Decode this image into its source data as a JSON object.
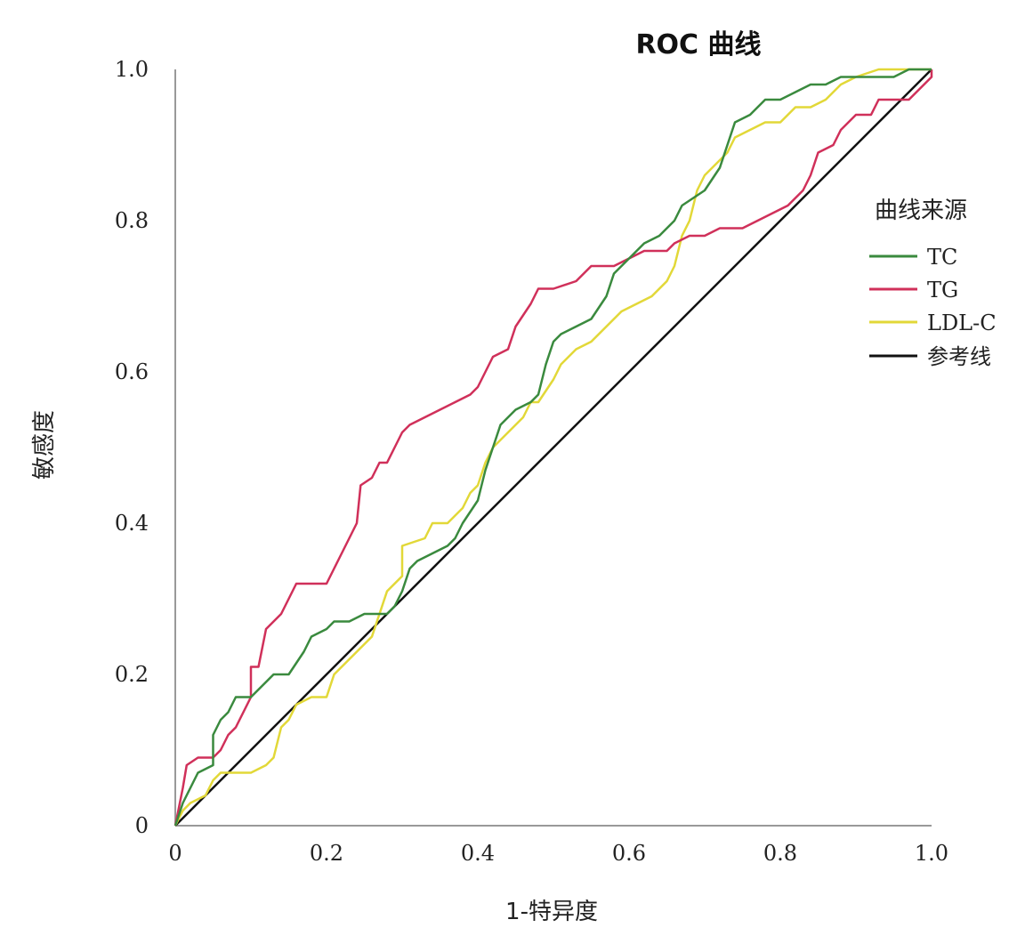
{
  "chart_data": {
    "type": "line",
    "title": "ROC 曲线",
    "xlabel": "1-特异度",
    "ylabel": "敏感度",
    "xlim": [
      0,
      1
    ],
    "ylim": [
      0,
      1
    ],
    "x_ticks": [
      "0",
      "0.2",
      "0.4",
      "0.6",
      "0.8",
      "1.0"
    ],
    "y_ticks": [
      "0",
      "0.2",
      "0.4",
      "0.6",
      "0.8",
      "1.0"
    ],
    "grid": false,
    "legend": {
      "title": "曲线来源",
      "placement": "right"
    },
    "series": [
      {
        "name": "TC",
        "color": "#3a8a3e",
        "points": [
          [
            0,
            0
          ],
          [
            0.01,
            0.03
          ],
          [
            0.02,
            0.05
          ],
          [
            0.03,
            0.07
          ],
          [
            0.05,
            0.08
          ],
          [
            0.05,
            0.12
          ],
          [
            0.06,
            0.14
          ],
          [
            0.07,
            0.15
          ],
          [
            0.08,
            0.17
          ],
          [
            0.1,
            0.17
          ],
          [
            0.12,
            0.19
          ],
          [
            0.13,
            0.2
          ],
          [
            0.15,
            0.2
          ],
          [
            0.17,
            0.23
          ],
          [
            0.18,
            0.25
          ],
          [
            0.2,
            0.26
          ],
          [
            0.21,
            0.27
          ],
          [
            0.23,
            0.27
          ],
          [
            0.25,
            0.28
          ],
          [
            0.28,
            0.28
          ],
          [
            0.29,
            0.29
          ],
          [
            0.3,
            0.31
          ],
          [
            0.31,
            0.34
          ],
          [
            0.32,
            0.35
          ],
          [
            0.34,
            0.36
          ],
          [
            0.36,
            0.37
          ],
          [
            0.37,
            0.38
          ],
          [
            0.38,
            0.4
          ],
          [
            0.4,
            0.43
          ],
          [
            0.41,
            0.47
          ],
          [
            0.42,
            0.5
          ],
          [
            0.43,
            0.53
          ],
          [
            0.45,
            0.55
          ],
          [
            0.47,
            0.56
          ],
          [
            0.48,
            0.57
          ],
          [
            0.49,
            0.61
          ],
          [
            0.5,
            0.64
          ],
          [
            0.51,
            0.65
          ],
          [
            0.53,
            0.66
          ],
          [
            0.55,
            0.67
          ],
          [
            0.57,
            0.7
          ],
          [
            0.58,
            0.73
          ],
          [
            0.6,
            0.75
          ],
          [
            0.62,
            0.77
          ],
          [
            0.64,
            0.78
          ],
          [
            0.66,
            0.8
          ],
          [
            0.67,
            0.82
          ],
          [
            0.7,
            0.84
          ],
          [
            0.72,
            0.87
          ],
          [
            0.73,
            0.9
          ],
          [
            0.74,
            0.93
          ],
          [
            0.76,
            0.94
          ],
          [
            0.78,
            0.96
          ],
          [
            0.8,
            0.96
          ],
          [
            0.82,
            0.97
          ],
          [
            0.84,
            0.98
          ],
          [
            0.86,
            0.98
          ],
          [
            0.88,
            0.99
          ],
          [
            0.9,
            0.99
          ],
          [
            0.93,
            0.99
          ],
          [
            0.95,
            0.99
          ],
          [
            0.97,
            1.0
          ],
          [
            1.0,
            1.0
          ]
        ]
      },
      {
        "name": "TG",
        "color": "#d0305a",
        "points": [
          [
            0,
            0
          ],
          [
            0.01,
            0.05
          ],
          [
            0.015,
            0.08
          ],
          [
            0.03,
            0.09
          ],
          [
            0.05,
            0.09
          ],
          [
            0.06,
            0.1
          ],
          [
            0.07,
            0.12
          ],
          [
            0.08,
            0.13
          ],
          [
            0.09,
            0.15
          ],
          [
            0.1,
            0.17
          ],
          [
            0.1,
            0.21
          ],
          [
            0.11,
            0.21
          ],
          [
            0.12,
            0.26
          ],
          [
            0.14,
            0.28
          ],
          [
            0.15,
            0.3
          ],
          [
            0.16,
            0.32
          ],
          [
            0.18,
            0.32
          ],
          [
            0.2,
            0.32
          ],
          [
            0.21,
            0.34
          ],
          [
            0.22,
            0.36
          ],
          [
            0.23,
            0.38
          ],
          [
            0.24,
            0.4
          ],
          [
            0.245,
            0.45
          ],
          [
            0.26,
            0.46
          ],
          [
            0.27,
            0.48
          ],
          [
            0.28,
            0.48
          ],
          [
            0.29,
            0.5
          ],
          [
            0.3,
            0.52
          ],
          [
            0.31,
            0.53
          ],
          [
            0.33,
            0.54
          ],
          [
            0.35,
            0.55
          ],
          [
            0.37,
            0.56
          ],
          [
            0.39,
            0.57
          ],
          [
            0.4,
            0.58
          ],
          [
            0.41,
            0.6
          ],
          [
            0.42,
            0.62
          ],
          [
            0.44,
            0.63
          ],
          [
            0.45,
            0.66
          ],
          [
            0.47,
            0.69
          ],
          [
            0.48,
            0.71
          ],
          [
            0.5,
            0.71
          ],
          [
            0.53,
            0.72
          ],
          [
            0.55,
            0.74
          ],
          [
            0.58,
            0.74
          ],
          [
            0.6,
            0.75
          ],
          [
            0.62,
            0.76
          ],
          [
            0.65,
            0.76
          ],
          [
            0.66,
            0.77
          ],
          [
            0.68,
            0.78
          ],
          [
            0.7,
            0.78
          ],
          [
            0.72,
            0.79
          ],
          [
            0.75,
            0.79
          ],
          [
            0.77,
            0.8
          ],
          [
            0.79,
            0.81
          ],
          [
            0.81,
            0.82
          ],
          [
            0.83,
            0.84
          ],
          [
            0.84,
            0.86
          ],
          [
            0.85,
            0.89
          ],
          [
            0.87,
            0.9
          ],
          [
            0.88,
            0.92
          ],
          [
            0.9,
            0.94
          ],
          [
            0.92,
            0.94
          ],
          [
            0.93,
            0.96
          ],
          [
            0.95,
            0.96
          ],
          [
            0.97,
            0.96
          ],
          [
            0.98,
            0.97
          ],
          [
            0.99,
            0.98
          ],
          [
            1.0,
            0.99
          ],
          [
            1.0,
            1.0
          ]
        ]
      },
      {
        "name": "LDL-C",
        "color": "#e2d838",
        "points": [
          [
            0,
            0
          ],
          [
            0.01,
            0.02
          ],
          [
            0.02,
            0.03
          ],
          [
            0.04,
            0.04
          ],
          [
            0.05,
            0.06
          ],
          [
            0.06,
            0.07
          ],
          [
            0.08,
            0.07
          ],
          [
            0.1,
            0.07
          ],
          [
            0.12,
            0.08
          ],
          [
            0.13,
            0.09
          ],
          [
            0.14,
            0.13
          ],
          [
            0.15,
            0.14
          ],
          [
            0.16,
            0.16
          ],
          [
            0.18,
            0.17
          ],
          [
            0.2,
            0.17
          ],
          [
            0.21,
            0.2
          ],
          [
            0.23,
            0.22
          ],
          [
            0.25,
            0.24
          ],
          [
            0.26,
            0.25
          ],
          [
            0.27,
            0.28
          ],
          [
            0.28,
            0.31
          ],
          [
            0.3,
            0.33
          ],
          [
            0.3,
            0.37
          ],
          [
            0.33,
            0.38
          ],
          [
            0.34,
            0.4
          ],
          [
            0.36,
            0.4
          ],
          [
            0.37,
            0.41
          ],
          [
            0.38,
            0.42
          ],
          [
            0.39,
            0.44
          ],
          [
            0.4,
            0.45
          ],
          [
            0.41,
            0.48
          ],
          [
            0.42,
            0.5
          ],
          [
            0.44,
            0.52
          ],
          [
            0.46,
            0.54
          ],
          [
            0.47,
            0.56
          ],
          [
            0.48,
            0.56
          ],
          [
            0.5,
            0.59
          ],
          [
            0.51,
            0.61
          ],
          [
            0.53,
            0.63
          ],
          [
            0.55,
            0.64
          ],
          [
            0.57,
            0.66
          ],
          [
            0.59,
            0.68
          ],
          [
            0.61,
            0.69
          ],
          [
            0.63,
            0.7
          ],
          [
            0.65,
            0.72
          ],
          [
            0.66,
            0.74
          ],
          [
            0.67,
            0.78
          ],
          [
            0.68,
            0.8
          ],
          [
            0.69,
            0.84
          ],
          [
            0.7,
            0.86
          ],
          [
            0.72,
            0.88
          ],
          [
            0.73,
            0.89
          ],
          [
            0.74,
            0.91
          ],
          [
            0.76,
            0.92
          ],
          [
            0.78,
            0.93
          ],
          [
            0.8,
            0.93
          ],
          [
            0.82,
            0.95
          ],
          [
            0.84,
            0.95
          ],
          [
            0.86,
            0.96
          ],
          [
            0.88,
            0.98
          ],
          [
            0.9,
            0.99
          ],
          [
            0.93,
            1.0
          ],
          [
            1.0,
            1.0
          ]
        ]
      },
      {
        "name": "参考线",
        "color": "#111111",
        "points": [
          [
            0,
            0
          ],
          [
            1,
            1
          ]
        ]
      }
    ]
  }
}
